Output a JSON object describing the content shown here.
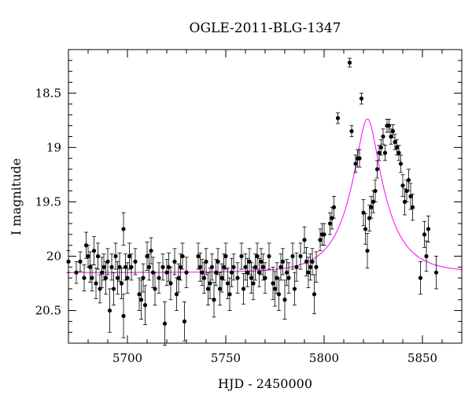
{
  "chart_data": {
    "type": "scatter",
    "title": "OGLE-2011-BLG-1347",
    "xlabel": "HJD - 2450000",
    "ylabel": "I magnitude",
    "xlim": [
      5670,
      5870
    ],
    "ylim": [
      20.8,
      18.1
    ],
    "y_inverted": true,
    "grid": false,
    "xticks": [
      5700,
      5750,
      5800,
      5850
    ],
    "yticks": [
      18.5,
      19,
      19.5,
      20,
      20.5
    ],
    "xtick_labels": [
      "5700",
      "5750",
      "5800",
      "5850"
    ],
    "ytick_labels": [
      "18.5",
      "19",
      "19.5",
      "20",
      "20.5"
    ],
    "colors": {
      "points": "#000000",
      "model": "#ff00ff",
      "axes": "#000000"
    },
    "series": [
      {
        "kind": "observations",
        "points": [
          [
            5670,
            20.05,
            0.1
          ],
          [
            5674,
            20.15,
            0.1
          ],
          [
            5676,
            20.05,
            0.09
          ],
          [
            5678,
            20.2,
            0.12
          ],
          [
            5679,
            19.9,
            0.12
          ],
          [
            5680,
            20.0,
            0.1
          ],
          [
            5681,
            20.1,
            0.14
          ],
          [
            5682,
            20.2,
            0.12
          ],
          [
            5683,
            19.95,
            0.13
          ],
          [
            5684,
            20.25,
            0.14
          ],
          [
            5685,
            20.0,
            0.12
          ],
          [
            5686,
            20.3,
            0.13
          ],
          [
            5687,
            20.15,
            0.14
          ],
          [
            5688,
            20.1,
            0.12
          ],
          [
            5689,
            20.2,
            0.15
          ],
          [
            5690,
            20.05,
            0.12
          ],
          [
            5691,
            20.5,
            0.2
          ],
          [
            5692,
            20.1,
            0.12
          ],
          [
            5693,
            20.3,
            0.15
          ],
          [
            5694,
            20.0,
            0.12
          ],
          [
            5695,
            20.2,
            0.15
          ],
          [
            5696,
            20.1,
            0.13
          ],
          [
            5697,
            20.25,
            0.14
          ],
          [
            5698,
            19.75,
            0.15
          ],
          [
            5698,
            20.55,
            0.2
          ],
          [
            5699,
            20.1,
            0.12
          ],
          [
            5700,
            20.2,
            0.14
          ],
          [
            5701,
            20.0,
            0.12
          ],
          [
            5702,
            20.1,
            0.12
          ],
          [
            5704,
            20.05,
            0.12
          ],
          [
            5706,
            20.35,
            0.15
          ],
          [
            5707,
            20.4,
            0.18
          ],
          [
            5708,
            20.2,
            0.13
          ],
          [
            5709,
            20.45,
            0.18
          ],
          [
            5710,
            20.0,
            0.13
          ],
          [
            5711,
            20.1,
            0.12
          ],
          [
            5712,
            19.95,
            0.12
          ],
          [
            5713,
            20.15,
            0.14
          ],
          [
            5714,
            20.3,
            0.15
          ],
          [
            5716,
            20.2,
            0.14
          ],
          [
            5718,
            20.1,
            0.12
          ],
          [
            5719,
            20.62,
            0.2
          ],
          [
            5720,
            20.15,
            0.12
          ],
          [
            5721,
            20.1,
            0.13
          ],
          [
            5722,
            20.25,
            0.15
          ],
          [
            5724,
            20.05,
            0.12
          ],
          [
            5725,
            20.35,
            0.15
          ],
          [
            5726,
            20.2,
            0.13
          ],
          [
            5727,
            20.1,
            0.12
          ],
          [
            5728,
            20.0,
            0.12
          ],
          [
            5729,
            20.6,
            0.18
          ],
          [
            5730,
            20.15,
            0.14
          ],
          [
            5736,
            20.0,
            0.12
          ],
          [
            5737,
            20.1,
            0.13
          ],
          [
            5738,
            20.15,
            0.12
          ],
          [
            5739,
            20.2,
            0.14
          ],
          [
            5740,
            20.05,
            0.12
          ],
          [
            5741,
            20.3,
            0.15
          ],
          [
            5742,
            20.25,
            0.14
          ],
          [
            5743,
            20.1,
            0.12
          ],
          [
            5744,
            20.4,
            0.16
          ],
          [
            5745,
            20.15,
            0.12
          ],
          [
            5746,
            20.05,
            0.12
          ],
          [
            5747,
            20.3,
            0.15
          ],
          [
            5748,
            20.2,
            0.13
          ],
          [
            5749,
            20.1,
            0.12
          ],
          [
            5750,
            20.0,
            0.12
          ],
          [
            5751,
            20.25,
            0.14
          ],
          [
            5752,
            20.35,
            0.15
          ],
          [
            5753,
            20.15,
            0.13
          ],
          [
            5754,
            20.1,
            0.12
          ],
          [
            5756,
            20.2,
            0.14
          ],
          [
            5758,
            20.0,
            0.12
          ],
          [
            5759,
            20.3,
            0.14
          ],
          [
            5760,
            20.1,
            0.12
          ],
          [
            5761,
            20.15,
            0.13
          ],
          [
            5762,
            20.05,
            0.12
          ],
          [
            5763,
            20.2,
            0.14
          ],
          [
            5764,
            20.25,
            0.15
          ],
          [
            5765,
            20.1,
            0.12
          ],
          [
            5766,
            20.0,
            0.12
          ],
          [
            5767,
            20.15,
            0.13
          ],
          [
            5768,
            20.05,
            0.12
          ],
          [
            5769,
            20.1,
            0.12
          ],
          [
            5770,
            20.2,
            0.14
          ],
          [
            5772,
            20.0,
            0.12
          ],
          [
            5774,
            20.25,
            0.15
          ],
          [
            5775,
            20.3,
            0.16
          ],
          [
            5776,
            20.2,
            0.14
          ],
          [
            5777,
            20.35,
            0.15
          ],
          [
            5778,
            20.1,
            0.12
          ],
          [
            5779,
            20.05,
            0.12
          ],
          [
            5780,
            20.4,
            0.18
          ],
          [
            5781,
            20.15,
            0.12
          ],
          [
            5782,
            20.2,
            0.14
          ],
          [
            5784,
            20.0,
            0.12
          ],
          [
            5785,
            20.3,
            0.15
          ],
          [
            5786,
            20.1,
            0.13
          ],
          [
            5788,
            20.0,
            0.12
          ],
          [
            5790,
            19.85,
            0.12
          ],
          [
            5791,
            20.05,
            0.13
          ],
          [
            5792,
            20.15,
            0.14
          ],
          [
            5793,
            20.1,
            0.12
          ],
          [
            5794,
            20.05,
            0.12
          ],
          [
            5795,
            20.35,
            0.18
          ],
          [
            5796,
            20.1,
            0.14
          ],
          [
            5798,
            19.85,
            0.1
          ],
          [
            5799,
            19.8,
            0.1
          ],
          [
            5800,
            19.8,
            0.1
          ],
          [
            5803,
            19.7,
            0.1
          ],
          [
            5804,
            19.65,
            0.1
          ],
          [
            5805,
            19.55,
            0.1
          ],
          [
            5807,
            18.73,
            0.05
          ],
          [
            5813,
            18.22,
            0.04
          ],
          [
            5814,
            18.85,
            0.05
          ],
          [
            5816,
            19.15,
            0.08
          ],
          [
            5817,
            19.1,
            0.08
          ],
          [
            5818,
            19.1,
            0.08
          ],
          [
            5819,
            18.55,
            0.05
          ],
          [
            5820,
            19.6,
            0.12
          ],
          [
            5821,
            19.75,
            0.14
          ],
          [
            5822,
            19.95,
            0.16
          ],
          [
            5823,
            19.65,
            0.12
          ],
          [
            5824,
            19.55,
            0.1
          ],
          [
            5825,
            19.5,
            0.1
          ],
          [
            5826,
            19.4,
            0.1
          ],
          [
            5827,
            19.2,
            0.08
          ],
          [
            5828,
            19.05,
            0.07
          ],
          [
            5829,
            19.0,
            0.07
          ],
          [
            5830,
            18.9,
            0.07
          ],
          [
            5831,
            19.05,
            0.07
          ],
          [
            5832,
            18.8,
            0.06
          ],
          [
            5833,
            18.8,
            0.06
          ],
          [
            5834,
            18.9,
            0.07
          ],
          [
            5835,
            18.85,
            0.06
          ],
          [
            5836,
            18.95,
            0.07
          ],
          [
            5837,
            19.0,
            0.07
          ],
          [
            5838,
            19.05,
            0.07
          ],
          [
            5839,
            19.15,
            0.08
          ],
          [
            5840,
            19.35,
            0.1
          ],
          [
            5841,
            19.5,
            0.12
          ],
          [
            5842,
            19.4,
            0.1
          ],
          [
            5843,
            19.3,
            0.1
          ],
          [
            5844,
            19.45,
            0.12
          ],
          [
            5845,
            19.55,
            0.12
          ],
          [
            5849,
            20.2,
            0.15
          ],
          [
            5851,
            19.8,
            0.12
          ],
          [
            5852,
            20.0,
            0.14
          ],
          [
            5853,
            19.75,
            0.12
          ],
          [
            5857,
            20.15,
            0.15
          ]
        ]
      },
      {
        "kind": "model",
        "u0": 0.28,
        "t0": 5822,
        "tE": 18,
        "base": 20.15
      }
    ]
  }
}
